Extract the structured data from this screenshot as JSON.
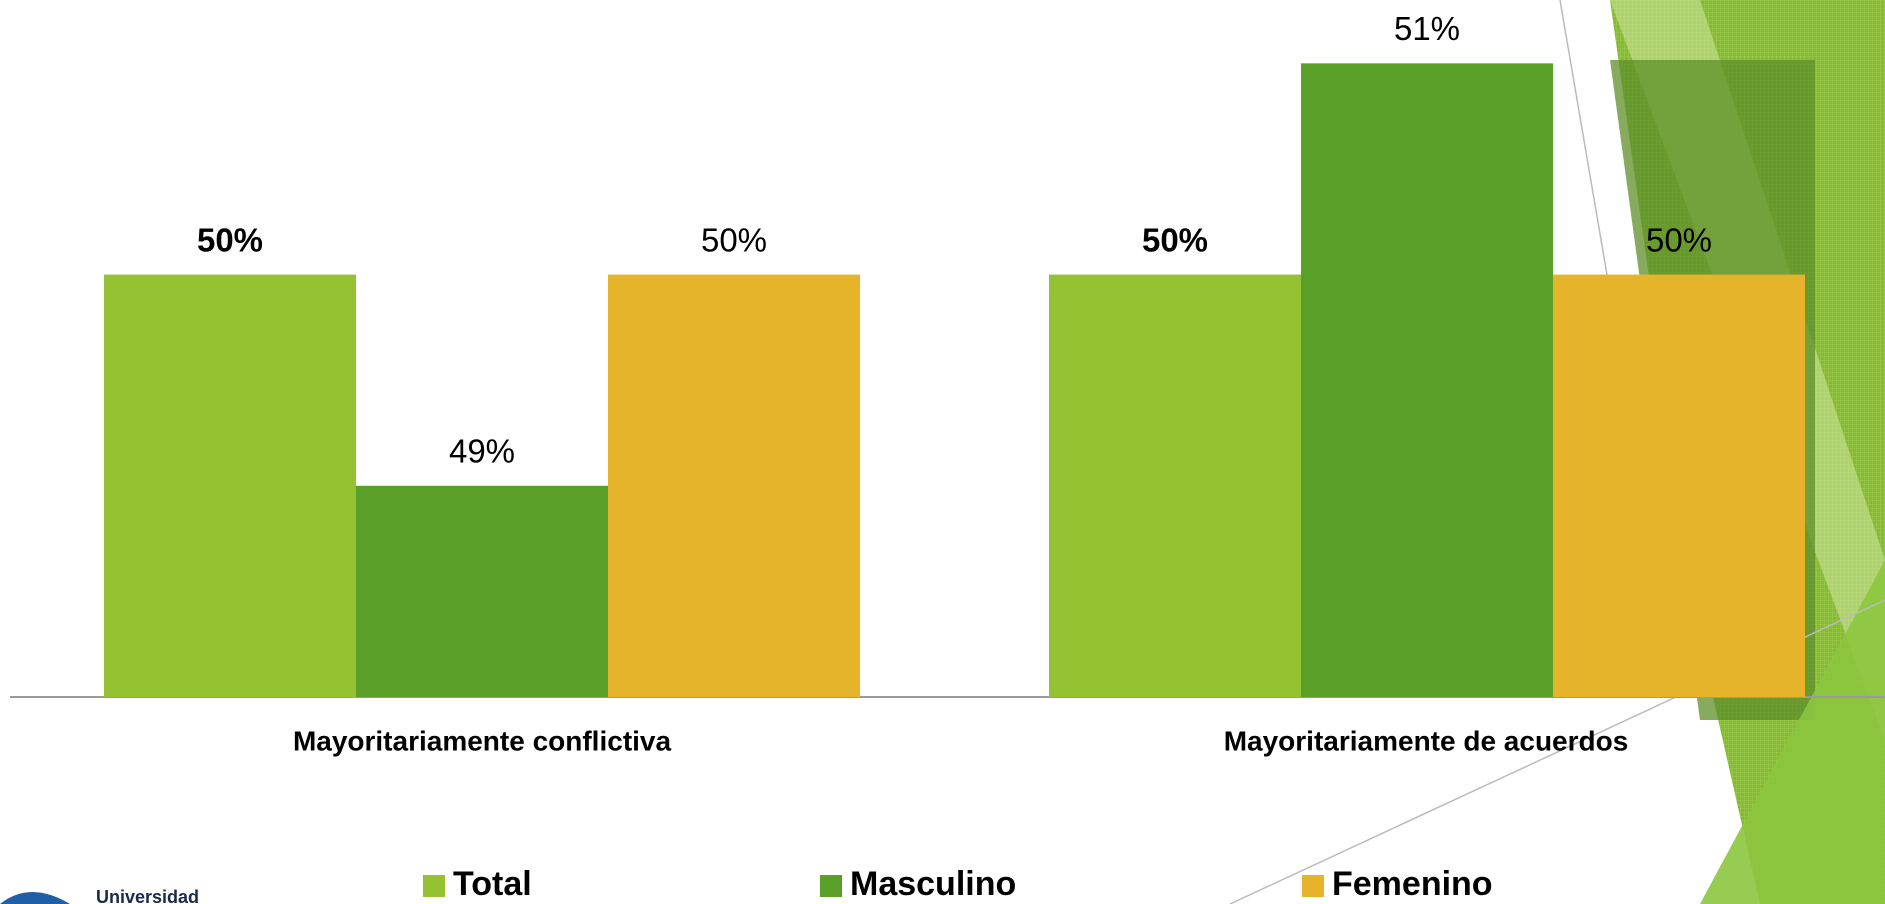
{
  "chart_data": {
    "type": "bar",
    "categories": [
      "Mayoritariamente conflictiva",
      "Mayoritariamente de acuerdos"
    ],
    "series": [
      {
        "name": "Total",
        "color": "#94c233",
        "values": [
          50,
          50
        ],
        "value_labels": [
          "50%",
          "50%"
        ],
        "bold_labels": true
      },
      {
        "name": "Masculino",
        "color": "#5a9f28",
        "values": [
          49,
          51
        ],
        "value_labels": [
          "49%",
          "51%"
        ],
        "bold_labels": false
      },
      {
        "name": "Femenino",
        "color": "#e6b42a",
        "values": [
          50,
          50
        ],
        "value_labels": [
          "50%",
          "50%"
        ],
        "bold_labels": false
      }
    ],
    "ylim": [
      48,
      51.3
    ],
    "legend": "bottom"
  },
  "logo": {
    "text": "Universidad"
  }
}
